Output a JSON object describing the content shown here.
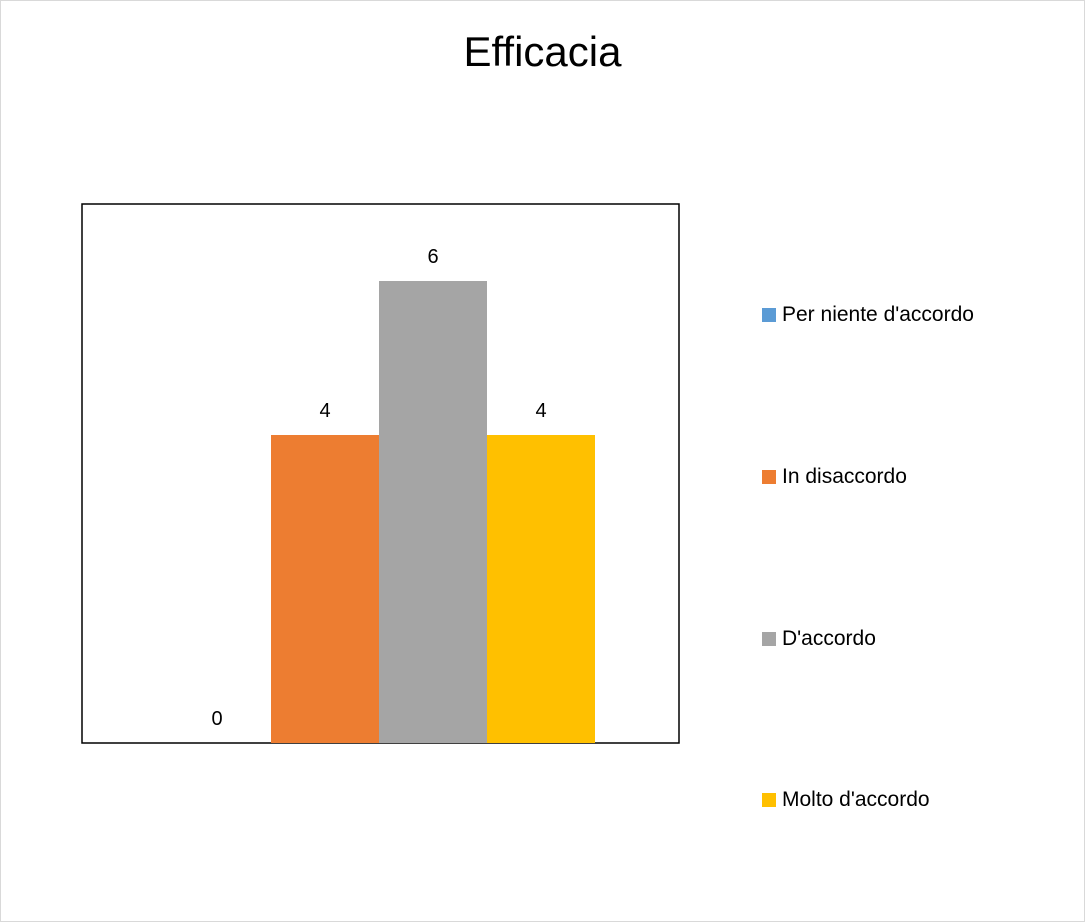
{
  "chart_data": {
    "type": "bar",
    "title": "Efficacia",
    "xlabel": "",
    "ylabel": "",
    "ylim": [
      0,
      7
    ],
    "grid": false,
    "legend_position": "right",
    "series": [
      {
        "name": "Per niente d'accordo",
        "values": [
          0
        ],
        "color": "#5B9BD5",
        "data_label": "0"
      },
      {
        "name": "In disaccordo",
        "values": [
          4
        ],
        "color": "#ED7D31",
        "data_label": "4"
      },
      {
        "name": "D'accordo",
        "values": [
          6
        ],
        "color": "#A5A5A5",
        "data_label": "6"
      },
      {
        "name": "Molto d'accordo",
        "values": [
          4
        ],
        "color": "#FFC000",
        "data_label": "4"
      }
    ]
  }
}
